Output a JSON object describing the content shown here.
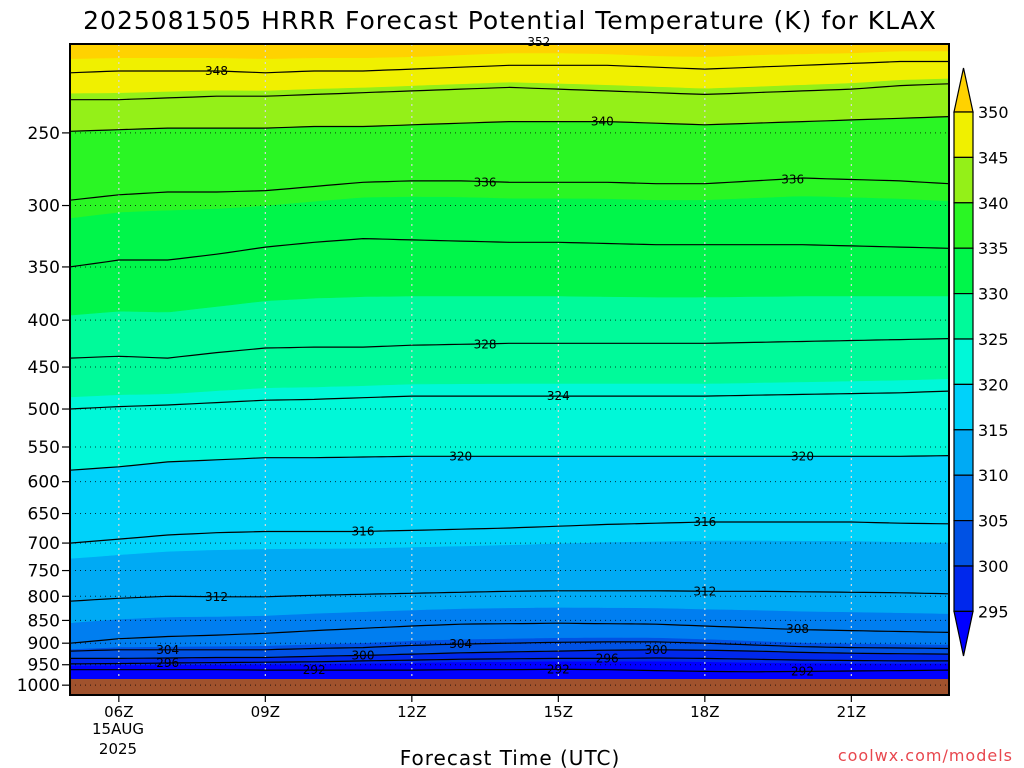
{
  "title": "2025081505 HRRR Forecast Potential Temperature (K) for KLAX",
  "credit": "coolwx.com/models",
  "chart_data": {
    "type": "heatmap",
    "title": "2025081505 HRRR Forecast Potential Temperature (K) for KLAX",
    "xlabel": "Forecast Time (UTC)",
    "ylabel": "",
    "x_date_label": [
      "15AUG",
      "2025"
    ],
    "x_range_hours_utc": [
      5,
      23
    ],
    "x_ticks": [
      {
        "hour": 6,
        "label": "06Z"
      },
      {
        "hour": 9,
        "label": "09Z"
      },
      {
        "hour": 12,
        "label": "12Z"
      },
      {
        "hour": 15,
        "label": "15Z"
      },
      {
        "hour": 18,
        "label": "18Z"
      },
      {
        "hour": 21,
        "label": "21Z"
      }
    ],
    "y_axis": "pressure (hPa), log scale, decreasing upward",
    "y_range_hpa": [
      1025,
      200
    ],
    "y_ticks": [
      250,
      300,
      350,
      400,
      450,
      500,
      550,
      600,
      650,
      700,
      750,
      800,
      850,
      900,
      950,
      1000
    ],
    "grid": "dotted",
    "colorbar": {
      "position": "right",
      "levels": [
        295,
        300,
        305,
        310,
        315,
        320,
        325,
        330,
        335,
        340,
        345,
        350
      ],
      "colors": [
        "#0000ff",
        "#0028ec",
        "#0052e4",
        "#007ef0",
        "#00aaf4",
        "#00d2fa",
        "#00f8d8",
        "#00fa9a",
        "#00f64a",
        "#2af624",
        "#94f018",
        "#f0f000",
        "#ffd200"
      ]
    },
    "surface_color": "#a0522d",
    "contour_levels": [
      292,
      296,
      300,
      304,
      308,
      312,
      316,
      320,
      324,
      328,
      332,
      336,
      340,
      344,
      348,
      352
    ],
    "isentropes_pressure_hpa": {
      "x_hours": [
        5,
        6,
        7,
        8,
        9,
        10,
        11,
        12,
        13,
        14,
        15,
        16,
        17,
        18,
        19,
        20,
        21,
        22,
        23
      ],
      "352": [
        200,
        200,
        200,
        200,
        200,
        200,
        200,
        200,
        199,
        198,
        198,
        199,
        200,
        200,
        199,
        199,
        199,
        198,
        198
      ],
      "348": [
        215,
        214,
        214,
        214,
        215,
        214,
        214,
        213,
        212,
        211,
        211,
        211,
        212,
        213,
        212,
        211,
        210,
        209,
        209
      ],
      "344": [
        230,
        230,
        229,
        228,
        228,
        227,
        226,
        225,
        224,
        223,
        224,
        225,
        226,
        227,
        226,
        225,
        224,
        222,
        221
      ],
      "340": [
        249,
        248,
        247,
        247,
        247,
        246,
        246,
        245,
        244,
        243,
        243,
        243,
        244,
        245,
        244,
        243,
        242,
        241,
        240
      ],
      "336": [
        296,
        292,
        290,
        290,
        289,
        286,
        283,
        282,
        282,
        283,
        283,
        283,
        284,
        284,
        282,
        280,
        281,
        282,
        284
      ],
      "332": [
        350,
        344,
        344,
        339,
        333,
        329,
        326,
        327,
        328,
        329,
        329,
        330,
        331,
        331,
        331,
        331,
        332,
        333,
        334
      ],
      "328": [
        440,
        438,
        440,
        434,
        429,
        428,
        428,
        426,
        425,
        424,
        424,
        424,
        424,
        424,
        423,
        422,
        421,
        420,
        419
      ],
      "324": [
        500,
        497,
        495,
        492,
        489,
        488,
        486,
        484,
        484,
        484,
        484,
        484,
        484,
        484,
        483,
        482,
        481,
        480,
        478
      ],
      "320": [
        583,
        578,
        571,
        568,
        565,
        565,
        564,
        563,
        563,
        563,
        563,
        563,
        563,
        563,
        563,
        563,
        563,
        563,
        562
      ],
      "316": [
        700,
        693,
        686,
        682,
        680,
        680,
        680,
        678,
        676,
        674,
        671,
        668,
        666,
        664,
        664,
        664,
        664,
        666,
        667
      ],
      "312": [
        810,
        804,
        800,
        801,
        801,
        798,
        796,
        794,
        792,
        790,
        789,
        789,
        789,
        790,
        790,
        791,
        792,
        793,
        795
      ],
      "308": [
        900,
        890,
        885,
        882,
        878,
        872,
        867,
        862,
        858,
        857,
        856,
        857,
        858,
        862,
        866,
        870,
        872,
        874,
        876
      ],
      "304": [
        918,
        915,
        915,
        915,
        915,
        912,
        910,
        905,
        902,
        900,
        898,
        897,
        897,
        900,
        904,
        908,
        910,
        911,
        912
      ],
      "300": [
        935,
        935,
        934,
        933,
        933,
        930,
        928,
        925,
        922,
        920,
        918,
        916,
        915,
        916,
        918,
        921,
        923,
        924,
        925
      ],
      "296": [
        948,
        947,
        946,
        945,
        944,
        943,
        941,
        939,
        937,
        936,
        935,
        935,
        934,
        935,
        937,
        939,
        940,
        941,
        941
      ],
      "292": [
        962,
        962,
        962,
        962,
        963,
        963,
        963,
        963,
        962,
        962,
        961,
        962,
        964,
        966,
        967,
        966,
        965,
        964,
        963
      ]
    },
    "contour_labels": [
      {
        "value": "352",
        "hour": 14.6,
        "p": 199
      },
      {
        "value": "348",
        "hour": 8.0,
        "p": 214
      },
      {
        "value": "340",
        "hour": 15.9,
        "p": 243
      },
      {
        "value": "336",
        "hour": 13.5,
        "p": 283
      },
      {
        "value": "336",
        "hour": 19.8,
        "p": 281
      },
      {
        "value": "328",
        "hour": 13.5,
        "p": 425
      },
      {
        "value": "324",
        "hour": 15.0,
        "p": 484
      },
      {
        "value": "320",
        "hour": 13.0,
        "p": 563
      },
      {
        "value": "320",
        "hour": 20.0,
        "p": 563
      },
      {
        "value": "316",
        "hour": 11.0,
        "p": 680
      },
      {
        "value": "316",
        "hour": 18.0,
        "p": 664
      },
      {
        "value": "312",
        "hour": 8.0,
        "p": 801
      },
      {
        "value": "312",
        "hour": 18.0,
        "p": 790
      },
      {
        "value": "308",
        "hour": 19.9,
        "p": 869
      },
      {
        "value": "304",
        "hour": 7.0,
        "p": 915
      },
      {
        "value": "304",
        "hour": 13.0,
        "p": 902
      },
      {
        "value": "300",
        "hour": 11.0,
        "p": 928
      },
      {
        "value": "300",
        "hour": 17.0,
        "p": 915
      },
      {
        "value": "296",
        "hour": 7.0,
        "p": 946
      },
      {
        "value": "296",
        "hour": 16.0,
        "p": 935
      },
      {
        "value": "292",
        "hour": 10.0,
        "p": 963
      },
      {
        "value": "292",
        "hour": 15.0,
        "p": 961
      },
      {
        "value": "292",
        "hour": 20.0,
        "p": 966
      }
    ]
  }
}
